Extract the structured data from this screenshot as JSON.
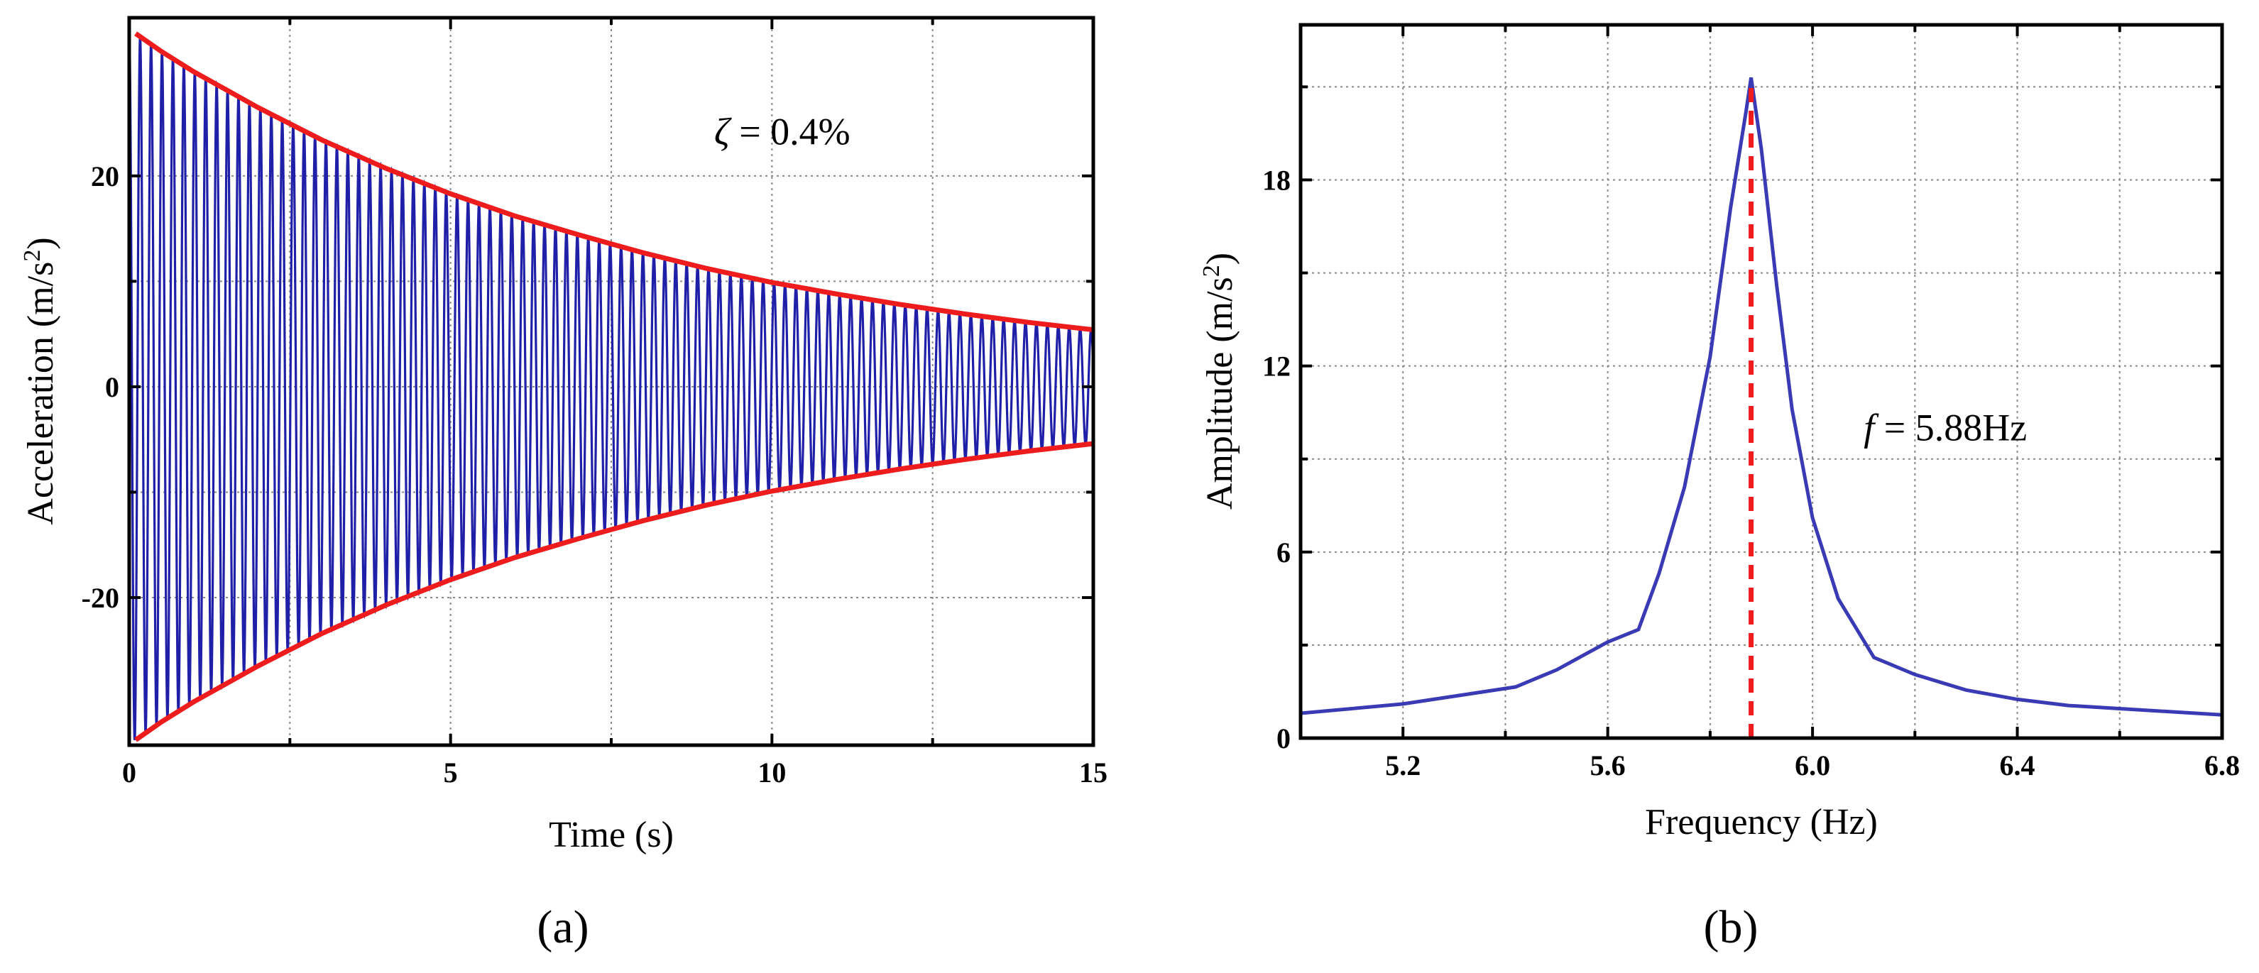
{
  "chart_data": [
    {
      "type": "line",
      "panel_label": "(a)",
      "xlabel": "Time (s)",
      "ylabel": "Acceleration (m/s",
      "ylabel_sup": "2",
      "ylabel_close": ")",
      "xlim": [
        0,
        15
      ],
      "ylim": [
        -34,
        35
      ],
      "xticks": [
        0,
        5,
        10,
        15
      ],
      "xticks_minor": [
        2.5,
        7.5,
        12.5
      ],
      "yticks": [
        -20,
        0,
        20
      ],
      "yticks_minor": [
        -10,
        10
      ],
      "grid": true,
      "annotation": {
        "symbol": "ζ",
        "text": " = 0.4%",
        "at": [
          9.1,
          23
        ]
      },
      "series": [
        {
          "name": "Acceleration signal",
          "color": "#1f1fa8",
          "kind": "decaying-sine",
          "amplitude0": 33.5,
          "frequency_hz": 5.88,
          "damping_ratio": 0.004,
          "t_range": [
            0,
            15
          ]
        },
        {
          "name": "Upper envelope",
          "color": "#ee1c1c",
          "x": [
            0.1,
            0.5,
            1.0,
            2.0,
            3.0,
            4.0,
            5.0,
            6.0,
            7.0,
            8.0,
            9.0,
            10.0,
            11.0,
            12.0,
            13.0,
            14.0,
            15.0
          ],
          "y": [
            33.5,
            31.8,
            29.9,
            26.5,
            23.4,
            20.7,
            18.3,
            16.2,
            14.4,
            12.7,
            11.2,
            9.9,
            8.8,
            7.8,
            6.9,
            6.1,
            5.4
          ]
        },
        {
          "name": "Lower envelope",
          "color": "#ee1c1c",
          "x": [
            0.1,
            0.5,
            1.0,
            2.0,
            3.0,
            4.0,
            5.0,
            6.0,
            7.0,
            8.0,
            9.0,
            10.0,
            11.0,
            12.0,
            13.0,
            14.0,
            15.0
          ],
          "y": [
            -33.5,
            -31.8,
            -29.9,
            -26.5,
            -23.4,
            -20.7,
            -18.3,
            -16.2,
            -14.4,
            -12.7,
            -11.2,
            -9.9,
            -8.8,
            -7.8,
            -6.9,
            -6.1,
            -5.4
          ]
        }
      ]
    },
    {
      "type": "line",
      "panel_label": "(b)",
      "xlabel": "Frequency (Hz)",
      "ylabel": "Amplitude (m/s",
      "ylabel_sup": "2",
      "ylabel_close": ")",
      "xlim": [
        5.0,
        6.8
      ],
      "ylim": [
        0,
        23
      ],
      "xticks": [
        5.2,
        5.6,
        6.0,
        6.4,
        6.8
      ],
      "xtick_labels": [
        "5.2",
        "5.6",
        "6.0",
        "6.4",
        "6.8"
      ],
      "xticks_minor": [
        5.4,
        5.8,
        6.2,
        6.6
      ],
      "yticks": [
        0,
        6,
        12,
        18
      ],
      "yticks_minor": [
        3,
        9,
        15,
        21
      ],
      "grid": true,
      "annotation": {
        "symbol": "f",
        "text": " = 5.88Hz",
        "at": [
          6.1,
          9.6
        ]
      },
      "series": [
        {
          "name": "Amplitude spectrum",
          "color": "#3a3ab5",
          "x": [
            5.0,
            5.1,
            5.2,
            5.3,
            5.42,
            5.5,
            5.6,
            5.66,
            5.7,
            5.75,
            5.8,
            5.84,
            5.87,
            5.88,
            5.9,
            5.93,
            5.96,
            6.0,
            6.05,
            6.12,
            6.2,
            6.3,
            6.4,
            6.5,
            6.6,
            6.7,
            6.8
          ],
          "y": [
            0.8,
            0.95,
            1.1,
            1.35,
            1.65,
            2.2,
            3.1,
            3.5,
            5.3,
            8.1,
            12.3,
            17.1,
            20.2,
            21.3,
            19.0,
            14.6,
            10.6,
            7.1,
            4.5,
            2.6,
            2.05,
            1.55,
            1.25,
            1.05,
            0.95,
            0.85,
            0.75
          ]
        },
        {
          "name": "Peak marker",
          "color": "#ee1c1c",
          "style": "dashed",
          "x": [
            5.88,
            5.88
          ],
          "y": [
            0,
            21.0
          ]
        }
      ]
    }
  ]
}
